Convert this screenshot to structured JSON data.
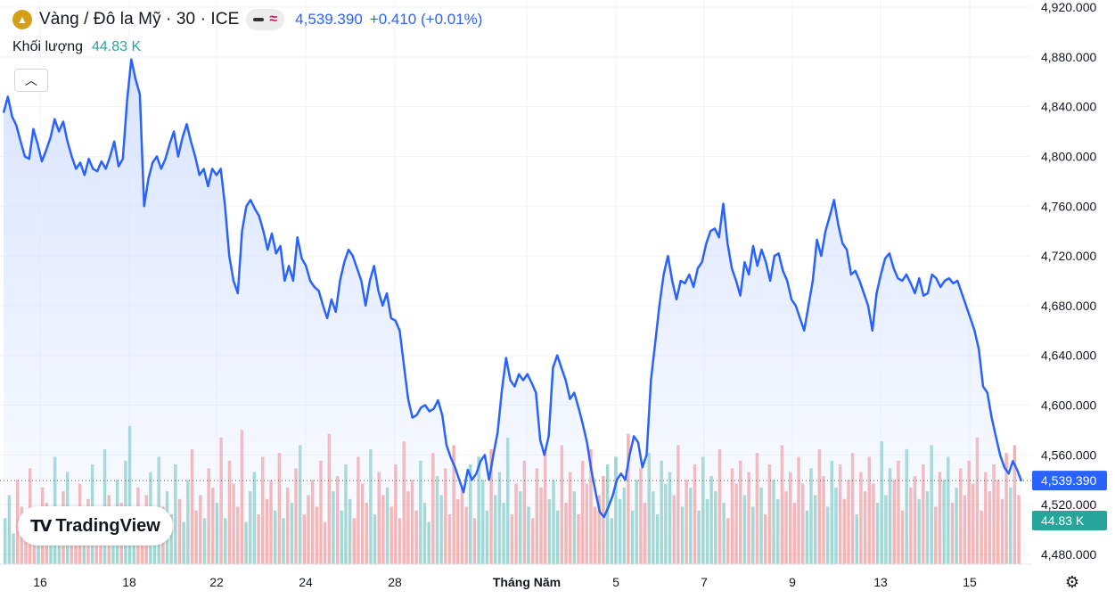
{
  "header": {
    "title": "Vàng / Đô la Mỹ · 30 · ICE",
    "last_price": "4,539.390",
    "change": "+0.410 (+0.01%)",
    "mode_icon": "approx",
    "volume_label": "Khối lượng",
    "volume_value": "44.83 K"
  },
  "branding": {
    "logo_text": "TradingView"
  },
  "colors": {
    "line": "#2962ff",
    "area_top": "#dbe6ff",
    "vol_up": "#26a69a",
    "vol_down": "#ef5350",
    "grid": "#f0f3fa"
  },
  "chart_data": {
    "type": "area",
    "title": "Vàng / Đô la Mỹ · 30 · ICE",
    "ylim": [
      4480,
      4920
    ],
    "y_ticks": [
      "4,920.000",
      "4,880.000",
      "4,840.000",
      "4,800.000",
      "4,760.000",
      "4,720.000",
      "4,680.000",
      "4,640.000",
      "4,600.000",
      "4,560.000",
      "4,539.390",
      "4,520.000",
      "4,480.000"
    ],
    "x_ticks": [
      "16",
      "18",
      "22",
      "24",
      "28",
      "Tháng Năm",
      "5",
      "7",
      "9",
      "13",
      "15"
    ],
    "last_value_label": "4,539.390",
    "volume_last_label": "44.83 K",
    "series": [
      {
        "name": "Vàng / Đô la Mỹ",
        "values": [
          4835,
          4848,
          4832,
          4825,
          4812,
          4800,
          4798,
          4822,
          4810,
          4796,
          4805,
          4815,
          4830,
          4820,
          4828,
          4812,
          4800,
          4790,
          4795,
          4785,
          4798,
          4790,
          4788,
          4796,
          4790,
          4800,
          4812,
          4792,
          4798,
          4845,
          4878,
          4862,
          4850,
          4760,
          4782,
          4795,
          4800,
          4790,
          4798,
          4810,
          4820,
          4800,
          4815,
          4826,
          4812,
          4800,
          4785,
          4790,
          4776,
          4790,
          4785,
          4790,
          4760,
          4720,
          4700,
          4690,
          4740,
          4760,
          4765,
          4758,
          4752,
          4740,
          4725,
          4738,
          4722,
          4728,
          4700,
          4712,
          4700,
          4735,
          4718,
          4712,
          4700,
          4695,
          4692,
          4680,
          4670,
          4685,
          4675,
          4700,
          4715,
          4725,
          4720,
          4710,
          4700,
          4680,
          4700,
          4712,
          4692,
          4680,
          4690,
          4670,
          4668,
          4660,
          4632,
          4605,
          4590,
          4592,
          4598,
          4600,
          4595,
          4597,
          4604,
          4592,
          4568,
          4558,
          4550,
          4540,
          4530,
          4548,
          4540,
          4545,
          4555,
          4560,
          4540,
          4560,
          4578,
          4612,
          4638,
          4620,
          4615,
          4625,
          4620,
          4625,
          4618,
          4610,
          4572,
          4560,
          4575,
          4630,
          4640,
          4630,
          4620,
          4605,
          4610,
          4598,
          4585,
          4570,
          4548,
          4530,
          4514,
          4510,
          4518,
          4527,
          4540,
          4545,
          4540,
          4560,
          4575,
          4570,
          4550,
          4560,
          4620,
          4650,
          4680,
          4705,
          4720,
          4700,
          4685,
          4700,
          4698,
          4705,
          4695,
          4710,
          4715,
          4730,
          4740,
          4742,
          4735,
          4762,
          4730,
          4710,
          4700,
          4688,
          4715,
          4705,
          4728,
          4712,
          4725,
          4715,
          4700,
          4720,
          4722,
          4708,
          4700,
          4685,
          4680,
          4670,
          4660,
          4680,
          4700,
          4733,
          4720,
          4740,
          4752,
          4765,
          4745,
          4730,
          4725,
          4705,
          4708,
          4700,
          4690,
          4680,
          4660,
          4690,
          4705,
          4718,
          4722,
          4710,
          4702,
          4700,
          4705,
          4698,
          4690,
          4702,
          4688,
          4690,
          4705,
          4702,
          4695,
          4700,
          4702,
          4698,
          4700,
          4690,
          4680,
          4670,
          4660,
          4645,
          4615,
          4610,
          4590,
          4575,
          4560,
          4550,
          4545,
          4555,
          4548,
          4539
        ]
      }
    ],
    "volume": [
      12,
      18,
      8,
      22,
      15,
      10,
      25,
      14,
      9,
      20,
      16,
      11,
      28,
      13,
      19,
      24,
      10,
      15,
      21,
      12,
      17,
      26,
      9,
      14,
      30,
      18,
      11,
      22,
      16,
      27,
      36,
      14,
      20,
      12,
      18,
      24,
      10,
      28,
      15,
      19,
      13,
      26,
      17,
      11,
      22,
      30,
      14,
      18,
      12,
      25,
      20,
      16,
      33,
      12,
      27,
      21,
      15,
      35,
      11,
      19,
      24,
      13,
      28,
      17,
      22,
      14,
      29,
      12,
      20,
      16,
      25,
      31,
      13,
      18,
      22,
      15,
      27,
      11,
      34,
      19,
      23,
      14,
      26,
      17,
      12,
      28,
      21,
      16,
      30,
      13,
      24,
      18,
      20,
      15,
      26,
      12,
      32,
      19,
      22,
      14,
      27,
      16,
      11,
      29,
      23,
      18,
      25,
      13,
      31,
      17,
      20,
      15,
      26,
      12,
      28,
      22,
      14,
      30,
      18,
      24,
      16,
      33,
      13,
      21,
      19,
      27,
      15,
      12,
      25,
      20,
      29,
      17,
      22,
      14,
      31,
      16,
      24,
      19,
      13,
      27,
      21,
      30,
      15,
      18,
      23,
      26,
      12,
      28,
      17,
      20,
      34,
      14,
      22,
      25,
      16,
      29,
      19,
      13,
      27,
      21,
      24,
      18,
      31,
      15,
      22,
      20,
      26,
      14,
      28,
      17,
      23,
      19,
      30,
      16,
      12,
      25,
      21,
      27,
      18,
      24,
      15,
      29,
      20,
      13,
      26,
      22,
      17,
      31,
      19,
      24,
      16,
      28,
      21,
      14,
      25,
      18,
      30,
      23,
      15,
      27,
      20,
      26,
      17,
      22,
      29,
      13,
      24,
      19,
      28,
      21,
      16,
      32,
      18,
      25,
      22,
      27,
      14,
      30,
      20,
      23,
      17,
      26,
      19,
      31,
      15,
      24,
      22,
      28,
      16,
      20,
      25,
      18,
      27,
      21,
      33,
      14,
      24,
      19,
      26,
      22,
      17,
      29,
      20,
      31,
      18
    ]
  }
}
